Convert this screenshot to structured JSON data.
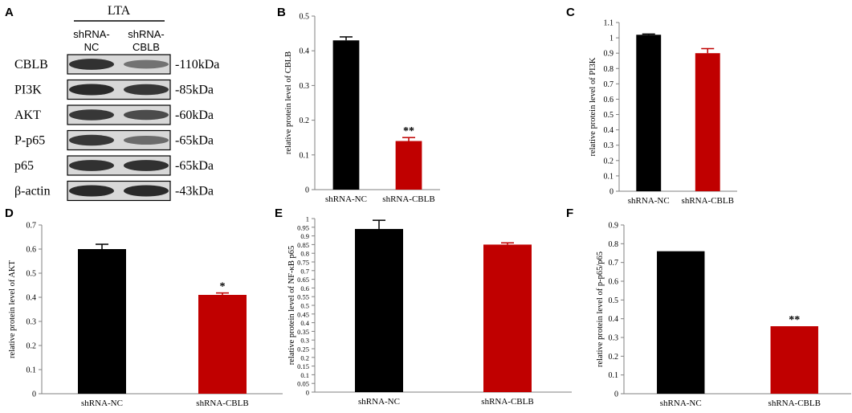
{
  "figure": {
    "description_free": true
  },
  "colors": {
    "control": "#000000",
    "knockdown": "#c00000",
    "axis": "#808080",
    "blot_band": "#2a2a2a",
    "blot_bg": "#d8d8d8"
  },
  "blot": {
    "panel_letter": "A",
    "treatment": "LTA",
    "lanes": [
      {
        "line1": "shRNA-",
        "line2": "NC"
      },
      {
        "line1": "shRNA-",
        "line2": "CBLB"
      }
    ],
    "rows": [
      {
        "protein": "CBLB",
        "size": "-110kDa",
        "band_intensity": [
          0.95,
          0.45
        ]
      },
      {
        "protein": "PI3K",
        "size": "-85kDa",
        "band_intensity": [
          1.0,
          0.9
        ]
      },
      {
        "protein": "AKT",
        "size": "-60kDa",
        "band_intensity": [
          0.9,
          0.75
        ]
      },
      {
        "protein": "P-p65",
        "size": "-65kDa",
        "band_intensity": [
          0.9,
          0.5
        ]
      },
      {
        "protein": "p65",
        "size": "-65kDa",
        "band_intensity": [
          0.95,
          0.95
        ]
      },
      {
        "protein": "β-actin",
        "size": "-43kDa",
        "band_intensity": [
          1.0,
          1.0
        ]
      }
    ]
  },
  "chart_data": [
    {
      "panel": "B",
      "type": "bar",
      "categories": [
        "shRNA-NC",
        "shRNA-CBLB"
      ],
      "values": [
        0.43,
        0.14
      ],
      "errors": [
        0.01,
        0.01
      ],
      "significance": [
        "",
        "**"
      ],
      "ylabel": "relative protein level of CBLB",
      "ylim": [
        0,
        0.5
      ],
      "yticks": [
        "0",
        "0.1",
        "0.2",
        "0.3",
        "0.4",
        "0.5"
      ]
    },
    {
      "panel": "C",
      "type": "bar",
      "categories": [
        "shRNA-NC",
        "shRNA-CBLB"
      ],
      "values": [
        1.02,
        0.9
      ],
      "errors": [
        0.005,
        0.03
      ],
      "significance": [
        "",
        ""
      ],
      "ylabel": "relative protein level of PI3K",
      "ylim": [
        0,
        1.1
      ],
      "yticks": [
        "0",
        "0.1",
        "0.2",
        "0.3",
        "0.4",
        "0.5",
        "0.6",
        "0.7",
        "0.8",
        "0.9",
        "1",
        "1.1"
      ]
    },
    {
      "panel": "D",
      "type": "bar",
      "categories": [
        "shRNA-NC",
        "shRNA-CBLB"
      ],
      "values": [
        0.6,
        0.41
      ],
      "errors": [
        0.02,
        0.008
      ],
      "significance": [
        "",
        "*"
      ],
      "ylabel": "relative protein level of AKT",
      "ylim": [
        0,
        0.7
      ],
      "yticks": [
        "0",
        "0.1",
        "0.2",
        "0.3",
        "0.4",
        "0.5",
        "0.6",
        "0.7"
      ]
    },
    {
      "panel": "E",
      "type": "bar",
      "categories": [
        "shRNA-NC",
        "shRNA-CBLB"
      ],
      "values": [
        0.94,
        0.85
      ],
      "errors": [
        0.05,
        0.01
      ],
      "significance": [
        "",
        ""
      ],
      "ylabel": "relative protein level of NF-κB p65",
      "ylim": [
        0,
        1
      ],
      "yticks": [
        "0",
        "0.05",
        "0.1",
        "0.15",
        "0.2",
        "0.25",
        "0.3",
        "0.35",
        "0.4",
        "0.45",
        "0.5",
        "0.55",
        "0.6",
        "0.65",
        "0.7",
        "0.75",
        "0.8",
        "0.85",
        "0.9",
        "0.95",
        "1"
      ]
    },
    {
      "panel": "F",
      "type": "bar",
      "categories": [
        "shRNA-NC",
        "shRNA-CBLB"
      ],
      "values": [
        0.76,
        0.36
      ],
      "errors": [
        0,
        0
      ],
      "significance": [
        "",
        "**"
      ],
      "ylabel": "relative protein level of p-p65/p65",
      "ylim": [
        0,
        0.9
      ],
      "yticks": [
        "0",
        "0.1",
        "0.2",
        "0.3",
        "0.4",
        "0.5",
        "0.6",
        "0.7",
        "0.8",
        "0.9"
      ]
    }
  ]
}
